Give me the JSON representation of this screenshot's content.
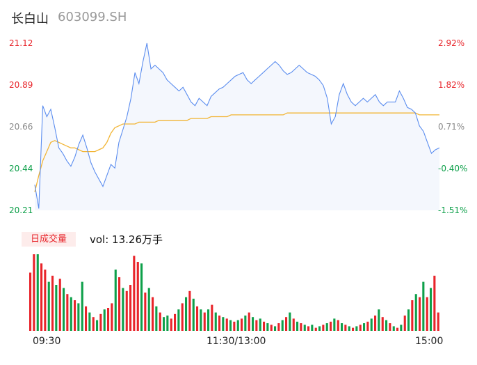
{
  "header": {
    "name": "长白山",
    "code": "603099.SH"
  },
  "volume_panel": {
    "tag_label": "日成交量",
    "vol_text": "vol: 13.26万手"
  },
  "colors": {
    "up": "#e8242a",
    "down": "#0ea04a",
    "price_line": "#5b8def",
    "avg_line": "#f2b535",
    "area_fill": "#f4f7fd"
  },
  "chart_data": [
    {
      "type": "line",
      "title": "",
      "xlabel": "",
      "ylabel": "",
      "ylim": [
        20.21,
        21.12
      ],
      "yticks_left": [
        "21.12",
        "20.89",
        "20.66",
        "20.44",
        "20.21"
      ],
      "yticks_right": [
        "2.92%",
        "1.82%",
        "0.71%",
        "-0.40%",
        "-1.51%"
      ],
      "xticks": [
        "09:30",
        "11:30/13:00",
        "15:00"
      ],
      "series": [
        {
          "role": "price",
          "values": [
            20.35,
            20.22,
            20.78,
            20.72,
            20.76,
            20.66,
            20.55,
            20.52,
            20.48,
            20.45,
            20.5,
            20.57,
            20.62,
            20.55,
            20.47,
            20.42,
            20.38,
            20.34,
            20.4,
            20.46,
            20.44,
            20.58,
            20.65,
            20.72,
            20.82,
            20.96,
            20.9,
            21.02,
            21.12,
            20.98,
            21.0,
            20.98,
            20.96,
            20.92,
            20.9,
            20.88,
            20.86,
            20.88,
            20.84,
            20.8,
            20.78,
            20.82,
            20.8,
            20.78,
            20.83,
            20.85,
            20.87,
            20.88,
            20.9,
            20.92,
            20.94,
            20.95,
            20.96,
            20.92,
            20.9,
            20.92,
            20.94,
            20.96,
            20.98,
            21.0,
            21.02,
            21.0,
            20.97,
            20.95,
            20.96,
            20.98,
            21.0,
            20.98,
            20.96,
            20.95,
            20.94,
            20.92,
            20.89,
            20.82,
            20.68,
            20.72,
            20.84,
            20.9,
            20.84,
            20.8,
            20.78,
            20.8,
            20.82,
            20.8,
            20.82,
            20.84,
            20.8,
            20.78,
            20.8,
            20.8,
            20.8,
            20.86,
            20.82,
            20.77,
            20.76,
            20.74,
            20.67,
            20.64,
            20.58,
            20.52,
            20.54,
            20.55
          ],
          "note": "last price sampled across the session"
        },
        {
          "role": "average",
          "values": [
            20.31,
            20.4,
            20.48,
            20.53,
            20.58,
            20.59,
            20.58,
            20.57,
            20.56,
            20.55,
            20.55,
            20.54,
            20.53,
            20.53,
            20.53,
            20.53,
            20.54,
            20.55,
            20.58,
            20.63,
            20.66,
            20.67,
            20.68,
            20.68,
            20.68,
            20.68,
            20.69,
            20.69,
            20.69,
            20.69,
            20.69,
            20.7,
            20.7,
            20.7,
            20.7,
            20.7,
            20.7,
            20.7,
            20.7,
            20.71,
            20.71,
            20.71,
            20.71,
            20.71,
            20.72,
            20.72,
            20.72,
            20.72,
            20.72,
            20.73,
            20.73,
            20.73,
            20.73,
            20.73,
            20.73,
            20.73,
            20.73,
            20.73,
            20.73,
            20.73,
            20.73,
            20.73,
            20.73,
            20.74,
            20.74,
            20.74,
            20.74,
            20.74,
            20.74,
            20.74,
            20.74,
            20.74,
            20.74,
            20.74,
            20.74,
            20.74,
            20.74,
            20.74,
            20.74,
            20.74,
            20.74,
            20.74,
            20.74,
            20.74,
            20.74,
            20.74,
            20.74,
            20.74,
            20.74,
            20.74,
            20.74,
            20.74,
            20.74,
            20.74,
            20.74,
            20.74,
            20.73,
            20.73,
            20.73,
            20.73,
            20.73,
            20.73
          ]
        }
      ]
    },
    {
      "type": "bar",
      "title": "",
      "note": "volume bars, red = up minute, green = down minute (relative heights)",
      "values": [
        38,
        50,
        50,
        44,
        40,
        32,
        36,
        30,
        34,
        28,
        24,
        22,
        20,
        18,
        32,
        16,
        12,
        9,
        7,
        11,
        14,
        15,
        18,
        40,
        35,
        28,
        26,
        30,
        49,
        45,
        44,
        25,
        28,
        22,
        16,
        12,
        9,
        10,
        8,
        11,
        14,
        18,
        22,
        26,
        21,
        16,
        14,
        12,
        14,
        17,
        12,
        10,
        9,
        8,
        7,
        6,
        7,
        8,
        10,
        12,
        9,
        7,
        8,
        6,
        5,
        4,
        3,
        5,
        7,
        9,
        12,
        8,
        6,
        5,
        4,
        3,
        4,
        2,
        3,
        4,
        5,
        6,
        8,
        7,
        5,
        4,
        3,
        2,
        3,
        4,
        5,
        6,
        8,
        10,
        14,
        9,
        7,
        5,
        3,
        2,
        4,
        10,
        14,
        20,
        24,
        22,
        32,
        22,
        28,
        36,
        12
      ],
      "colors": [
        "r",
        "r",
        "g",
        "r",
        "r",
        "g",
        "r",
        "g",
        "r",
        "g",
        "r",
        "g",
        "r",
        "g",
        "g",
        "r",
        "g",
        "r",
        "g",
        "r",
        "g",
        "r",
        "r",
        "g",
        "r",
        "g",
        "r",
        "r",
        "r",
        "r",
        "g",
        "r",
        "g",
        "r",
        "g",
        "r",
        "g",
        "g",
        "r",
        "r",
        "g",
        "r",
        "g",
        "r",
        "g",
        "r",
        "g",
        "r",
        "g",
        "r",
        "g",
        "r",
        "g",
        "r",
        "g",
        "r",
        "g",
        "r",
        "g",
        "r",
        "g",
        "r",
        "g",
        "r",
        "g",
        "r",
        "g",
        "r",
        "g",
        "r",
        "g",
        "r",
        "g",
        "r",
        "g",
        "r",
        "g",
        "r",
        "g",
        "r",
        "g",
        "r",
        "g",
        "r",
        "g",
        "r",
        "g",
        "r",
        "g",
        "r",
        "g",
        "r",
        "g",
        "r",
        "g",
        "r",
        "g",
        "r",
        "g",
        "r",
        "g",
        "r",
        "g",
        "r",
        "g",
        "r",
        "g",
        "r",
        "g",
        "r",
        "r"
      ]
    }
  ]
}
